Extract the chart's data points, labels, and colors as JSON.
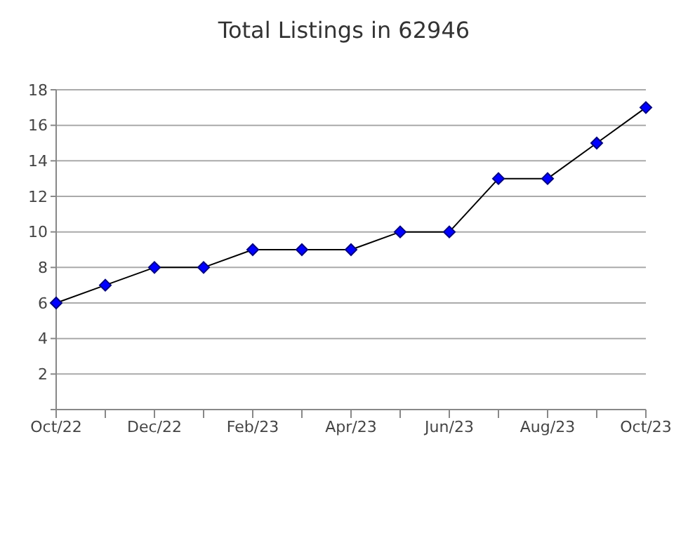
{
  "chart_data": {
    "type": "line",
    "title": "Total Listings in 62946",
    "categories": [
      "Oct/22",
      null,
      "Dec/22",
      null,
      "Feb/23",
      null,
      "Apr/23",
      null,
      "Jun/23",
      null,
      "Aug/23",
      null,
      "Oct/23"
    ],
    "series": [
      {
        "color": "#0000ff",
        "values": [
          6,
          7,
          8,
          8,
          9,
          9,
          9,
          10,
          10,
          13,
          13,
          15,
          17
        ]
      }
    ],
    "ylim": [
      0,
      18
    ],
    "yticks": [
      {
        "value": 0,
        "label": null
      },
      2,
      4,
      6,
      8,
      10,
      12,
      14,
      16,
      18
    ],
    "grid": "y",
    "marker": "diamond",
    "line_style": "solid",
    "legend": false
  }
}
